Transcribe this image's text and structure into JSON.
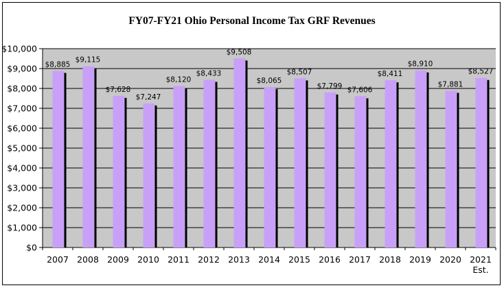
{
  "chart_data": {
    "type": "bar",
    "title": "FY07-FY21 Ohio Personal Income Tax GRF Revenues",
    "categories": [
      "2007",
      "2008",
      "2009",
      "2010",
      "2011",
      "2012",
      "2013",
      "2014",
      "2015",
      "2016",
      "2017",
      "2018",
      "2019",
      "2020",
      "2021"
    ],
    "category_sublabels": [
      "",
      "",
      "",
      "",
      "",
      "",
      "",
      "",
      "",
      "",
      "",
      "",
      "",
      "",
      "Est."
    ],
    "values": [
      8885,
      9115,
      7628,
      7247,
      8120,
      8433,
      9508,
      8065,
      8507,
      7799,
      7606,
      8411,
      8910,
      7881,
      8527
    ],
    "data_labels": [
      "$8,885",
      "$9,115",
      "$7,628",
      "$7,247",
      "$8,120",
      "$8,433",
      "$9,508",
      "$8,065",
      "$8,507",
      "$7,799",
      "$7,606",
      "$8,411",
      "$8,910",
      "$7,881",
      "$8,527"
    ],
    "yticks": [
      "$0",
      "$1,000",
      "$2,000",
      "$3,000",
      "$4,000",
      "$5,000",
      "$6,000",
      "$7,000",
      "$8,000",
      "$9,000",
      "$10,000"
    ],
    "ylim": [
      0,
      10000
    ],
    "xlabel": "",
    "ylabel": "",
    "grid": true,
    "colors": {
      "bar": "#c8a0f8",
      "shadow": "#000000",
      "plot_bg": "#c8c8c8",
      "grid": "#000000"
    }
  }
}
